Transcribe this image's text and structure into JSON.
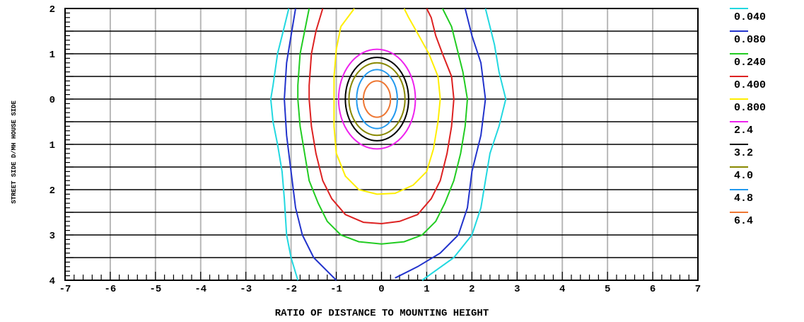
{
  "chart_data": {
    "type": "contour",
    "title": "",
    "xlabel": "RATIO OF DISTANCE TO MOUNTING HEIGHT",
    "ylabel": "STREET SIDE  D/MH  HOUSE SIDE",
    "xlim": [
      -7,
      7
    ],
    "ylim": [
      -4,
      2
    ],
    "x_ticks": [
      "-7",
      "-6",
      "-5",
      "-4",
      "-3",
      "-2",
      "-1",
      "0",
      "1",
      "2",
      "3",
      "4",
      "5",
      "6",
      "7"
    ],
    "y_ticks": [
      {
        "value": 2,
        "label": "2"
      },
      {
        "value": 1,
        "label": "1"
      },
      {
        "value": 0,
        "label": "0"
      },
      {
        "value": -1,
        "label": "1"
      },
      {
        "value": -2,
        "label": "2"
      },
      {
        "value": -3,
        "label": "3"
      },
      {
        "value": -4,
        "label": "4"
      }
    ],
    "grid": true,
    "legend_position": "right",
    "series": [
      {
        "name": "0.040",
        "color": "#22d8e0",
        "points": [
          [
            -2.05,
            2
          ],
          [
            -2.15,
            1.6
          ],
          [
            -2.3,
            1
          ],
          [
            -2.4,
            0.3
          ],
          [
            -2.45,
            0
          ],
          [
            -2.4,
            -0.5
          ],
          [
            -2.3,
            -1
          ],
          [
            -2.2,
            -1.6
          ],
          [
            -2.15,
            -2.2
          ],
          [
            -2.1,
            -3
          ],
          [
            -2.0,
            -3.5
          ],
          [
            -1.85,
            -4
          ]
        ],
        "points2": [
          [
            2.3,
            2
          ],
          [
            2.4,
            1.6
          ],
          [
            2.5,
            1.2
          ],
          [
            2.6,
            0.6
          ],
          [
            2.75,
            0
          ],
          [
            2.6,
            -0.6
          ],
          [
            2.4,
            -1.2
          ],
          [
            2.3,
            -1.8
          ],
          [
            2.2,
            -2.4
          ],
          [
            2.0,
            -3
          ],
          [
            1.6,
            -3.5
          ],
          [
            0.9,
            -4
          ]
        ]
      },
      {
        "name": "0.080",
        "color": "#2233cc",
        "points": [
          [
            -1.9,
            2
          ],
          [
            -2.0,
            1.4
          ],
          [
            -2.1,
            0.8
          ],
          [
            -2.15,
            0
          ],
          [
            -2.1,
            -0.8
          ],
          [
            -2.0,
            -1.6
          ],
          [
            -1.9,
            -2.4
          ],
          [
            -1.75,
            -3
          ],
          [
            -1.5,
            -3.5
          ],
          [
            -1.2,
            -3.8
          ],
          [
            -1.0,
            -4
          ]
        ],
        "points2": [
          [
            1.85,
            2
          ],
          [
            2.0,
            1.4
          ],
          [
            2.2,
            0.8
          ],
          [
            2.3,
            0
          ],
          [
            2.2,
            -0.8
          ],
          [
            2.0,
            -1.6
          ],
          [
            1.9,
            -2.4
          ],
          [
            1.7,
            -3
          ],
          [
            1.3,
            -3.4
          ],
          [
            0.8,
            -3.7
          ],
          [
            0.3,
            -3.95
          ]
        ]
      },
      {
        "name": "0.240",
        "color": "#22cc22",
        "closed": false,
        "points": [
          [
            -1.6,
            2
          ],
          [
            -1.7,
            1.5
          ],
          [
            -1.8,
            1
          ],
          [
            -1.85,
            0.3
          ],
          [
            -1.85,
            0
          ],
          [
            -1.8,
            -0.6
          ],
          [
            -1.7,
            -1.2
          ],
          [
            -1.6,
            -1.8
          ],
          [
            -1.4,
            -2.3
          ],
          [
            -1.2,
            -2.7
          ],
          [
            -0.9,
            -3
          ],
          [
            -0.5,
            -3.15
          ],
          [
            0,
            -3.2
          ],
          [
            0.5,
            -3.15
          ],
          [
            0.9,
            -3
          ],
          [
            1.2,
            -2.7
          ],
          [
            1.4,
            -2.3
          ],
          [
            1.6,
            -1.8
          ],
          [
            1.75,
            -1.2
          ],
          [
            1.85,
            -0.6
          ],
          [
            1.9,
            0
          ],
          [
            1.8,
            0.6
          ],
          [
            1.65,
            1.2
          ],
          [
            1.55,
            1.6
          ],
          [
            1.35,
            2
          ]
        ]
      },
      {
        "name": "0.400",
        "color": "#dd2222",
        "closed": false,
        "points": [
          [
            -1.3,
            2
          ],
          [
            -1.45,
            1.5
          ],
          [
            -1.55,
            1
          ],
          [
            -1.6,
            0.3
          ],
          [
            -1.6,
            0
          ],
          [
            -1.55,
            -0.6
          ],
          [
            -1.45,
            -1.2
          ],
          [
            -1.3,
            -1.8
          ],
          [
            -1.1,
            -2.2
          ],
          [
            -0.8,
            -2.55
          ],
          [
            -0.4,
            -2.72
          ],
          [
            0,
            -2.75
          ],
          [
            0.4,
            -2.7
          ],
          [
            0.8,
            -2.55
          ],
          [
            1.1,
            -2.2
          ],
          [
            1.3,
            -1.8
          ],
          [
            1.45,
            -1.2
          ],
          [
            1.55,
            -0.6
          ],
          [
            1.6,
            0
          ],
          [
            1.55,
            0.5
          ],
          [
            1.35,
            1
          ],
          [
            1.2,
            1.4
          ],
          [
            1.1,
            1.8
          ],
          [
            1.0,
            2
          ]
        ]
      },
      {
        "name": "0.800",
        "color": "#ffee00",
        "closed": false,
        "points": [
          [
            -0.9,
            1.6
          ],
          [
            -1.0,
            1.1
          ],
          [
            -1.05,
            0.5
          ],
          [
            -1.05,
            0
          ],
          [
            -1.05,
            -0.6
          ],
          [
            -1.0,
            -1.2
          ],
          [
            -0.8,
            -1.7
          ],
          [
            -0.5,
            -2.0
          ],
          [
            -0.1,
            -2.1
          ],
          [
            0.3,
            -2.08
          ],
          [
            0.7,
            -1.9
          ],
          [
            1.0,
            -1.6
          ],
          [
            1.15,
            -1.1
          ],
          [
            1.25,
            -0.5
          ],
          [
            1.3,
            0
          ],
          [
            1.25,
            0.5
          ],
          [
            1.05,
            1
          ],
          [
            0.8,
            1.45
          ],
          [
            0.6,
            1.8
          ],
          [
            0.5,
            2
          ]
        ],
        "lead": [
          [
            -0.6,
            2
          ],
          [
            -0.9,
            1.6
          ]
        ]
      },
      {
        "name": "2.4",
        "color": "#ee22ee",
        "ellipse": {
          "cx": -0.1,
          "cy": 0,
          "rx": 0.85,
          "ry": 1.1
        }
      },
      {
        "name": "3.2",
        "color": "#000000",
        "ellipse": {
          "cx": -0.1,
          "cy": 0,
          "rx": 0.7,
          "ry": 0.92
        }
      },
      {
        "name": "4.0",
        "color": "#888800",
        "ellipse": {
          "cx": -0.1,
          "cy": 0,
          "rx": 0.62,
          "ry": 0.8
        }
      },
      {
        "name": "4.8",
        "color": "#2299ee",
        "ellipse": {
          "cx": -0.1,
          "cy": 0,
          "rx": 0.45,
          "ry": 0.65
        }
      },
      {
        "name": "6.4",
        "color": "#ee7733",
        "ellipse": {
          "cx": -0.1,
          "cy": 0,
          "rx": 0.3,
          "ry": 0.4
        }
      }
    ]
  }
}
